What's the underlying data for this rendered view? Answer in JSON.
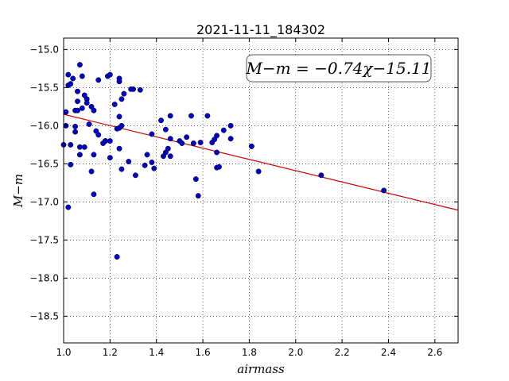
{
  "chart_data": {
    "type": "scatter",
    "title": "2021-11-11_184302",
    "xlabel": "airmass",
    "ylabel": "M−m",
    "xlim": [
      1.0,
      2.7
    ],
    "ylim": [
      -18.85,
      -14.85
    ],
    "y_inverted": false,
    "x_ticks": [
      1.0,
      1.2,
      1.4,
      1.6,
      1.8,
      2.0,
      2.2,
      2.4,
      2.6
    ],
    "x_tick_labels": [
      "1.0",
      "1.2",
      "1.4",
      "1.6",
      "1.8",
      "2.0",
      "2.2",
      "2.4",
      "2.6"
    ],
    "y_ticks": [
      -15.0,
      -15.5,
      -16.0,
      -16.5,
      -17.0,
      -17.5,
      -18.0,
      -18.5
    ],
    "y_tick_labels": [
      "−15.0",
      "−15.5",
      "−16.0",
      "−16.5",
      "−17.0",
      "−17.5",
      "−18.0",
      "−18.5"
    ],
    "grid": true,
    "annotation": "M−m = −0.74χ−15.11",
    "colors": {
      "points": "#0000cc",
      "fit_line": "#cc0000"
    },
    "fit_line": {
      "slope": -0.74,
      "intercept": -15.11,
      "x_range": [
        1.0,
        2.7
      ]
    },
    "series": [
      {
        "points": [
          [
            1.0,
            -16.25
          ],
          [
            1.01,
            -15.82
          ],
          [
            1.01,
            -16.0
          ],
          [
            1.02,
            -17.07
          ],
          [
            1.02,
            -15.33
          ],
          [
            1.02,
            -15.47
          ],
          [
            1.03,
            -16.25
          ],
          [
            1.03,
            -16.51
          ],
          [
            1.03,
            -15.45
          ],
          [
            1.04,
            -15.38
          ],
          [
            1.05,
            -15.8
          ],
          [
            1.05,
            -16.08
          ],
          [
            1.05,
            -16.01
          ],
          [
            1.06,
            -15.55
          ],
          [
            1.06,
            -15.68
          ],
          [
            1.06,
            -15.8
          ],
          [
            1.07,
            -16.28
          ],
          [
            1.07,
            -15.2
          ],
          [
            1.07,
            -16.38
          ],
          [
            1.08,
            -15.35
          ],
          [
            1.08,
            -15.77
          ],
          [
            1.09,
            -16.28
          ],
          [
            1.09,
            -15.6
          ],
          [
            1.1,
            -15.65
          ],
          [
            1.1,
            -15.7
          ],
          [
            1.11,
            -15.98
          ],
          [
            1.12,
            -16.6
          ],
          [
            1.12,
            -15.75
          ],
          [
            1.13,
            -15.8
          ],
          [
            1.13,
            -16.38
          ],
          [
            1.13,
            -16.9
          ],
          [
            1.14,
            -16.07
          ],
          [
            1.15,
            -16.12
          ],
          [
            1.15,
            -15.4
          ],
          [
            1.17,
            -16.23
          ],
          [
            1.18,
            -16.2
          ],
          [
            1.18,
            -16.2
          ],
          [
            1.19,
            -15.35
          ],
          [
            1.2,
            -15.33
          ],
          [
            1.2,
            -16.2
          ],
          [
            1.2,
            -16.42
          ],
          [
            1.22,
            -15.72
          ],
          [
            1.23,
            -17.72
          ],
          [
            1.23,
            -16.04
          ],
          [
            1.24,
            -15.38
          ],
          [
            1.24,
            -15.42
          ],
          [
            1.24,
            -15.88
          ],
          [
            1.24,
            -16.3
          ],
          [
            1.24,
            -16.03
          ],
          [
            1.25,
            -16.57
          ],
          [
            1.25,
            -15.65
          ],
          [
            1.25,
            -16.0
          ],
          [
            1.26,
            -15.58
          ],
          [
            1.28,
            -16.47
          ],
          [
            1.29,
            -15.52
          ],
          [
            1.3,
            -15.52
          ],
          [
            1.31,
            -16.65
          ],
          [
            1.33,
            -15.53
          ],
          [
            1.35,
            -16.52
          ],
          [
            1.36,
            -16.38
          ],
          [
            1.38,
            -16.48
          ],
          [
            1.38,
            -16.11
          ],
          [
            1.39,
            -16.56
          ],
          [
            1.42,
            -15.93
          ],
          [
            1.43,
            -16.4
          ],
          [
            1.44,
            -16.35
          ],
          [
            1.44,
            -16.05
          ],
          [
            1.45,
            -16.3
          ],
          [
            1.46,
            -16.4
          ],
          [
            1.46,
            -15.87
          ],
          [
            1.46,
            -16.17
          ],
          [
            1.5,
            -16.2
          ],
          [
            1.51,
            -16.23
          ],
          [
            1.53,
            -16.15
          ],
          [
            1.55,
            -15.87
          ],
          [
            1.56,
            -16.23
          ],
          [
            1.57,
            -16.7
          ],
          [
            1.58,
            -16.92
          ],
          [
            1.59,
            -16.22
          ],
          [
            1.62,
            -15.87
          ],
          [
            1.64,
            -16.22
          ],
          [
            1.65,
            -16.18
          ],
          [
            1.66,
            -16.13
          ],
          [
            1.66,
            -16.35
          ],
          [
            1.66,
            -16.55
          ],
          [
            1.67,
            -16.54
          ],
          [
            1.69,
            -16.06
          ],
          [
            1.72,
            -16.17
          ],
          [
            1.72,
            -16.0
          ],
          [
            1.81,
            -16.27
          ],
          [
            1.81,
            -16.27
          ],
          [
            1.84,
            -16.6
          ],
          [
            2.11,
            -16.65
          ],
          [
            2.38,
            -16.85
          ]
        ]
      }
    ]
  }
}
